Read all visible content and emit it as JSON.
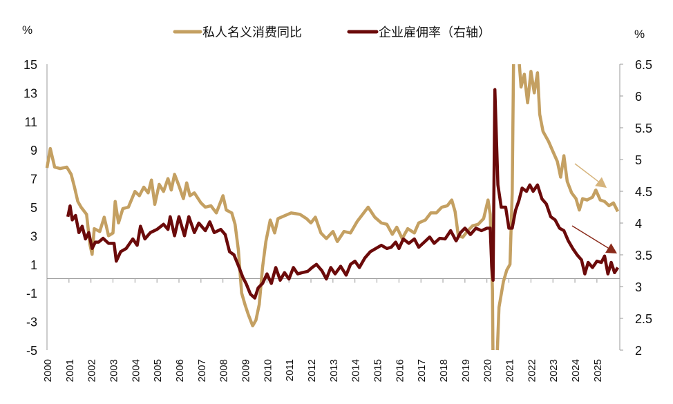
{
  "chart_data": {
    "type": "line",
    "legend_position": "top",
    "grid": false,
    "left_axis": {
      "unit_label": "%",
      "ylim": [
        -5,
        15
      ],
      "ticks": [
        "15",
        "13",
        "11",
        "9",
        "7",
        "5",
        "3",
        "1",
        "-1",
        "-3",
        "-5"
      ]
    },
    "right_axis": {
      "unit_label": "%",
      "ylim": [
        2,
        6.5
      ],
      "ticks": [
        "6.5",
        "6",
        "5.5",
        "5",
        "4.5",
        "4",
        "3.5",
        "3",
        "2.5",
        "2"
      ]
    },
    "x_ticks": [
      "2000",
      "2001",
      "2002",
      "2003",
      "2004",
      "2005",
      "2006",
      "2007",
      "2008",
      "2009",
      "2010",
      "2011",
      "2012",
      "2013",
      "2014",
      "2015",
      "2016",
      "2017",
      "2018",
      "2019",
      "2020",
      "2021",
      "2022",
      "2023",
      "2024",
      "2025"
    ],
    "xlim": [
      2000,
      2026.04
    ],
    "series": [
      {
        "name": "私人名义消费同比",
        "axis": "left",
        "color": "#c4a062",
        "points": [
          [
            2000.0,
            7.75
          ],
          [
            2000.15,
            9.1
          ],
          [
            2000.35,
            7.8
          ],
          [
            2000.6,
            7.7
          ],
          [
            2000.9,
            7.8
          ],
          [
            2001.1,
            7.3
          ],
          [
            2001.25,
            6.4
          ],
          [
            2001.4,
            5.4
          ],
          [
            2001.55,
            5.0
          ],
          [
            2001.8,
            4.5
          ],
          [
            2001.95,
            2.4
          ],
          [
            2002.05,
            1.7
          ],
          [
            2002.15,
            3.5
          ],
          [
            2002.4,
            3.3
          ],
          [
            2002.6,
            4.3
          ],
          [
            2002.8,
            3.0
          ],
          [
            2003.0,
            3.2
          ],
          [
            2003.1,
            5.4
          ],
          [
            2003.25,
            3.9
          ],
          [
            2003.45,
            4.9
          ],
          [
            2003.7,
            5.0
          ],
          [
            2004.0,
            6.1
          ],
          [
            2004.2,
            5.8
          ],
          [
            2004.4,
            6.4
          ],
          [
            2004.6,
            6.0
          ],
          [
            2004.75,
            6.9
          ],
          [
            2004.9,
            5.2
          ],
          [
            2005.1,
            6.6
          ],
          [
            2005.3,
            6.1
          ],
          [
            2005.5,
            7.0
          ],
          [
            2005.65,
            6.2
          ],
          [
            2005.8,
            7.3
          ],
          [
            2006.0,
            6.5
          ],
          [
            2006.2,
            5.6
          ],
          [
            2006.35,
            6.7
          ],
          [
            2006.5,
            5.8
          ],
          [
            2006.7,
            6.0
          ],
          [
            2007.0,
            5.3
          ],
          [
            2007.2,
            5.0
          ],
          [
            2007.45,
            5.1
          ],
          [
            2007.7,
            4.6
          ],
          [
            2008.0,
            5.8
          ],
          [
            2008.15,
            4.8
          ],
          [
            2008.4,
            4.6
          ],
          [
            2008.55,
            3.8
          ],
          [
            2008.7,
            2.0
          ],
          [
            2008.85,
            -1.0
          ],
          [
            2009.0,
            -1.8
          ],
          [
            2009.15,
            -2.5
          ],
          [
            2009.35,
            -3.3
          ],
          [
            2009.5,
            -2.9
          ],
          [
            2009.65,
            -1.8
          ],
          [
            2009.8,
            0.8
          ],
          [
            2009.95,
            2.6
          ],
          [
            2010.15,
            4.1
          ],
          [
            2010.35,
            3.2
          ],
          [
            2010.5,
            4.2
          ],
          [
            2010.8,
            4.4
          ],
          [
            2011.1,
            4.6
          ],
          [
            2011.5,
            4.5
          ],
          [
            2011.8,
            4.2
          ],
          [
            2012.0,
            3.9
          ],
          [
            2012.2,
            4.3
          ],
          [
            2012.45,
            3.2
          ],
          [
            2012.7,
            2.8
          ],
          [
            2013.0,
            3.3
          ],
          [
            2013.2,
            2.6
          ],
          [
            2013.5,
            3.3
          ],
          [
            2013.8,
            3.2
          ],
          [
            2014.1,
            4.0
          ],
          [
            2014.4,
            4.6
          ],
          [
            2014.6,
            5.0
          ],
          [
            2014.9,
            4.3
          ],
          [
            2015.2,
            3.9
          ],
          [
            2015.45,
            3.8
          ],
          [
            2015.7,
            3.1
          ],
          [
            2015.9,
            3.6
          ],
          [
            2016.15,
            2.8
          ],
          [
            2016.4,
            3.5
          ],
          [
            2016.7,
            3.2
          ],
          [
            2016.9,
            3.9
          ],
          [
            2017.2,
            4.1
          ],
          [
            2017.45,
            4.6
          ],
          [
            2017.7,
            4.6
          ],
          [
            2017.95,
            5.0
          ],
          [
            2018.2,
            5.1
          ],
          [
            2018.4,
            5.5
          ],
          [
            2018.55,
            4.7
          ],
          [
            2018.7,
            3.0
          ],
          [
            2018.9,
            2.9
          ],
          [
            2019.1,
            3.3
          ],
          [
            2019.35,
            3.7
          ],
          [
            2019.6,
            3.8
          ],
          [
            2019.85,
            4.2
          ],
          [
            2020.05,
            5.5
          ],
          [
            2020.15,
            4.5
          ],
          [
            2020.25,
            -0.8
          ],
          [
            2020.33,
            -16
          ],
          [
            2020.45,
            -6
          ],
          [
            2020.55,
            -2.0
          ],
          [
            2020.75,
            -0.2
          ],
          [
            2020.9,
            0.6
          ],
          [
            2021.05,
            1.0
          ],
          [
            2021.15,
            6.0
          ],
          [
            2021.3,
            29
          ],
          [
            2021.45,
            15.5
          ],
          [
            2021.55,
            13.4
          ],
          [
            2021.7,
            14.3
          ],
          [
            2021.85,
            12.3
          ],
          [
            2022.0,
            14.5
          ],
          [
            2022.15,
            13.0
          ],
          [
            2022.3,
            14.4
          ],
          [
            2022.4,
            11.5
          ],
          [
            2022.55,
            10.3
          ],
          [
            2022.8,
            9.6
          ],
          [
            2023.0,
            8.9
          ],
          [
            2023.2,
            8.2
          ],
          [
            2023.35,
            7.1
          ],
          [
            2023.5,
            8.6
          ],
          [
            2023.65,
            6.8
          ],
          [
            2023.85,
            6.0
          ],
          [
            2024.05,
            5.6
          ],
          [
            2024.2,
            4.8
          ],
          [
            2024.35,
            5.6
          ],
          [
            2024.55,
            5.5
          ],
          [
            2024.8,
            5.7
          ],
          [
            2024.95,
            6.2
          ],
          [
            2025.15,
            5.5
          ],
          [
            2025.35,
            5.4
          ],
          [
            2025.55,
            5.1
          ],
          [
            2025.75,
            5.3
          ],
          [
            2025.95,
            4.7
          ]
        ]
      },
      {
        "name": "企业雇佣率（右轴）",
        "axis": "right",
        "color": "#6b0a0a",
        "points": [
          [
            2000.95,
            4.1
          ],
          [
            2001.05,
            4.27
          ],
          [
            2001.15,
            4.05
          ],
          [
            2001.3,
            4.12
          ],
          [
            2001.45,
            3.85
          ],
          [
            2001.6,
            3.95
          ],
          [
            2001.75,
            3.75
          ],
          [
            2001.9,
            3.85
          ],
          [
            2002.05,
            3.6
          ],
          [
            2002.2,
            3.7
          ],
          [
            2002.35,
            3.7
          ],
          [
            2002.55,
            3.76
          ],
          [
            2002.8,
            3.68
          ],
          [
            2003.05,
            3.68
          ],
          [
            2003.15,
            3.4
          ],
          [
            2003.35,
            3.55
          ],
          [
            2003.6,
            3.6
          ],
          [
            2003.9,
            3.75
          ],
          [
            2004.1,
            3.65
          ],
          [
            2004.25,
            3.95
          ],
          [
            2004.45,
            3.75
          ],
          [
            2004.7,
            3.85
          ],
          [
            2005.0,
            3.9
          ],
          [
            2005.3,
            3.98
          ],
          [
            2005.5,
            3.9
          ],
          [
            2005.6,
            4.1
          ],
          [
            2005.8,
            3.8
          ],
          [
            2006.0,
            4.1
          ],
          [
            2006.25,
            3.8
          ],
          [
            2006.45,
            4.1
          ],
          [
            2006.7,
            3.85
          ],
          [
            2006.9,
            4.0
          ],
          [
            2007.2,
            3.88
          ],
          [
            2007.4,
            4.02
          ],
          [
            2007.6,
            3.85
          ],
          [
            2007.9,
            3.9
          ],
          [
            2008.1,
            3.82
          ],
          [
            2008.3,
            3.55
          ],
          [
            2008.5,
            3.5
          ],
          [
            2008.7,
            3.33
          ],
          [
            2008.9,
            3.15
          ],
          [
            2009.05,
            3.05
          ],
          [
            2009.25,
            2.88
          ],
          [
            2009.45,
            2.82
          ],
          [
            2009.6,
            2.98
          ],
          [
            2009.8,
            3.05
          ],
          [
            2010.0,
            3.2
          ],
          [
            2010.2,
            3.05
          ],
          [
            2010.4,
            3.3
          ],
          [
            2010.6,
            3.1
          ],
          [
            2010.8,
            3.22
          ],
          [
            2011.0,
            3.12
          ],
          [
            2011.2,
            3.3
          ],
          [
            2011.4,
            3.2
          ],
          [
            2011.6,
            3.22
          ],
          [
            2011.85,
            3.24
          ],
          [
            2012.05,
            3.3
          ],
          [
            2012.25,
            3.35
          ],
          [
            2012.5,
            3.25
          ],
          [
            2012.7,
            3.12
          ],
          [
            2012.9,
            3.3
          ],
          [
            2013.1,
            3.2
          ],
          [
            2013.35,
            3.32
          ],
          [
            2013.6,
            3.18
          ],
          [
            2013.8,
            3.35
          ],
          [
            2014.0,
            3.4
          ],
          [
            2014.2,
            3.3
          ],
          [
            2014.45,
            3.45
          ],
          [
            2014.7,
            3.55
          ],
          [
            2014.95,
            3.6
          ],
          [
            2015.2,
            3.65
          ],
          [
            2015.45,
            3.6
          ],
          [
            2015.65,
            3.62
          ],
          [
            2015.85,
            3.7
          ],
          [
            2016.0,
            3.6
          ],
          [
            2016.2,
            3.75
          ],
          [
            2016.45,
            3.68
          ],
          [
            2016.7,
            3.75
          ],
          [
            2016.9,
            3.62
          ],
          [
            2017.15,
            3.7
          ],
          [
            2017.4,
            3.78
          ],
          [
            2017.6,
            3.68
          ],
          [
            2017.85,
            3.76
          ],
          [
            2018.1,
            3.75
          ],
          [
            2018.35,
            3.88
          ],
          [
            2018.6,
            3.72
          ],
          [
            2018.8,
            3.85
          ],
          [
            2019.0,
            3.92
          ],
          [
            2019.25,
            3.82
          ],
          [
            2019.5,
            3.92
          ],
          [
            2019.75,
            3.88
          ],
          [
            2020.0,
            3.92
          ],
          [
            2020.15,
            3.92
          ],
          [
            2020.22,
            3.3
          ],
          [
            2020.28,
            3.1
          ],
          [
            2020.36,
            6.1
          ],
          [
            2020.5,
            4.6
          ],
          [
            2020.65,
            4.25
          ],
          [
            2020.85,
            4.25
          ],
          [
            2021.0,
            3.92
          ],
          [
            2021.15,
            3.92
          ],
          [
            2021.3,
            4.2
          ],
          [
            2021.45,
            4.35
          ],
          [
            2021.6,
            4.55
          ],
          [
            2021.8,
            4.5
          ],
          [
            2021.95,
            4.6
          ],
          [
            2022.1,
            4.5
          ],
          [
            2022.3,
            4.6
          ],
          [
            2022.5,
            4.38
          ],
          [
            2022.7,
            4.3
          ],
          [
            2022.9,
            4.1
          ],
          [
            2023.1,
            4.05
          ],
          [
            2023.3,
            3.92
          ],
          [
            2023.5,
            3.88
          ],
          [
            2023.7,
            3.72
          ],
          [
            2023.9,
            3.6
          ],
          [
            2024.1,
            3.5
          ],
          [
            2024.3,
            3.42
          ],
          [
            2024.45,
            3.2
          ],
          [
            2024.6,
            3.38
          ],
          [
            2024.8,
            3.3
          ],
          [
            2025.0,
            3.4
          ],
          [
            2025.2,
            3.38
          ],
          [
            2025.35,
            3.48
          ],
          [
            2025.5,
            3.2
          ],
          [
            2025.65,
            3.38
          ],
          [
            2025.8,
            3.22
          ],
          [
            2025.95,
            3.3
          ]
        ]
      }
    ],
    "trend_arrows": [
      {
        "color": "#d6b47c"
      },
      {
        "color": "#8a2a1a"
      }
    ]
  }
}
